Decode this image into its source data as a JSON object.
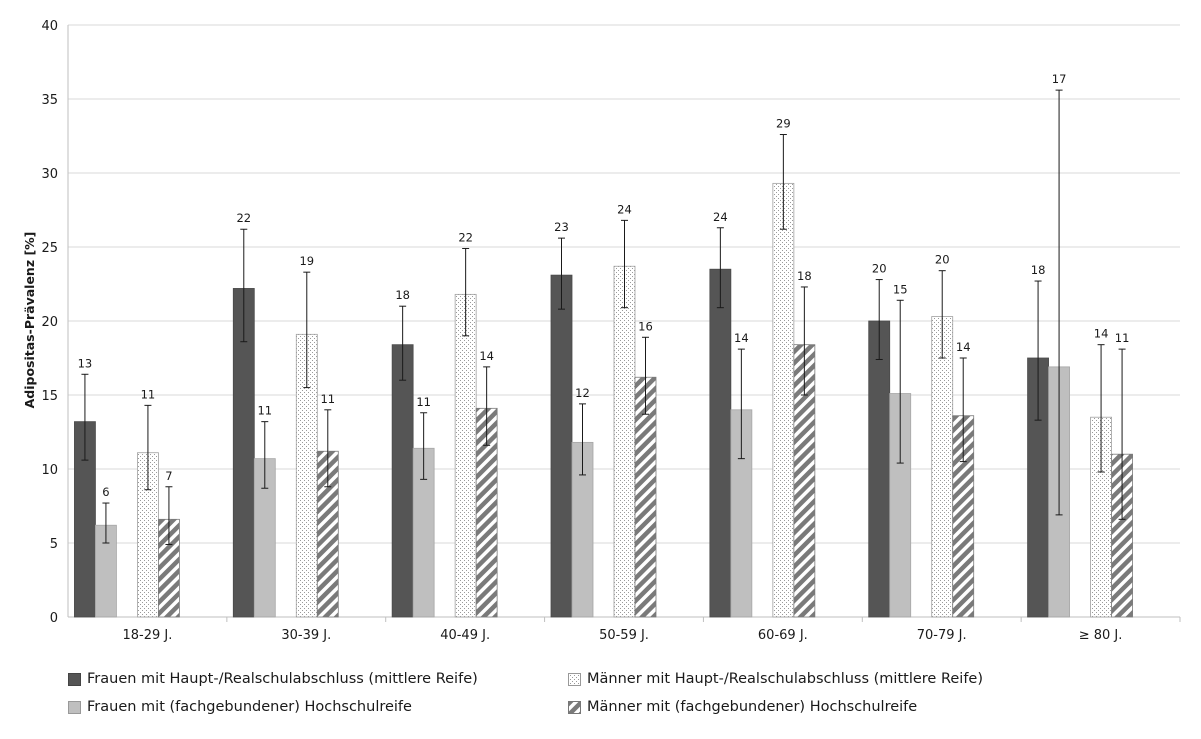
{
  "chart_data": {
    "type": "bar",
    "title": "",
    "xlabel": "",
    "ylabel": "Adipositas-Prävalenz [%]",
    "ylim": [
      0,
      40
    ],
    "yticks": [
      "0",
      "5",
      "10",
      "15",
      "20",
      "25",
      "30",
      "35",
      "40"
    ],
    "grid": true,
    "legend_position": "bottom",
    "categories": [
      "18-29 J.",
      "30-39 J.",
      "40-49 J.",
      "50-59 J.",
      "60-69 J.",
      "70-79 J.",
      "≥ 80 J."
    ],
    "series": [
      {
        "name": "Frauen mit Haupt-/Realschulabschluss (mittlere Reife)",
        "style": "solid-dark",
        "color": "#555555",
        "values": [
          13.2,
          22.2,
          18.4,
          23.1,
          23.5,
          20.0,
          17.5
        ],
        "labels": [
          "13",
          "22",
          "18",
          "23",
          "24",
          "20",
          "18"
        ],
        "ci_low": [
          10.6,
          18.6,
          16.0,
          20.8,
          20.9,
          17.4,
          13.3
        ],
        "ci_high": [
          16.4,
          26.2,
          21.0,
          25.6,
          26.3,
          22.8,
          22.7
        ]
      },
      {
        "name": "Frauen mit (fachgebundener) Hochschulreife",
        "style": "solid-light",
        "color": "#bfbfbf",
        "values": [
          6.2,
          10.7,
          11.4,
          11.8,
          14.0,
          15.1,
          16.9
        ],
        "labels": [
          "6",
          "11",
          "11",
          "12",
          "14",
          "15",
          "17"
        ],
        "ci_low": [
          5.0,
          8.7,
          9.3,
          9.6,
          10.7,
          10.4,
          6.9
        ],
        "ci_high": [
          7.7,
          13.2,
          13.8,
          14.4,
          18.1,
          21.4,
          35.6
        ]
      },
      {
        "name": "Männer mit Haupt-/Realschulabschluss (mittlere Reife)",
        "style": "dotted",
        "color": "#ffffff",
        "values": [
          11.1,
          19.1,
          21.8,
          23.7,
          29.3,
          20.3,
          13.5
        ],
        "labels": [
          "11",
          "19",
          "22",
          "24",
          "29",
          "20",
          "14"
        ],
        "ci_low": [
          8.6,
          15.5,
          19.0,
          20.9,
          26.2,
          17.5,
          9.8
        ],
        "ci_high": [
          14.3,
          23.3,
          24.9,
          26.8,
          32.6,
          23.4,
          18.4
        ]
      },
      {
        "name": "Männer mit (fachgebundener) Hochschulreife",
        "style": "hatched",
        "color": "#808080",
        "values": [
          6.6,
          11.2,
          14.1,
          16.2,
          18.4,
          13.6,
          11.0
        ],
        "labels": [
          "7",
          "11",
          "14",
          "16",
          "18",
          "14",
          "11"
        ],
        "ci_low": [
          4.9,
          8.8,
          11.6,
          13.7,
          15.0,
          10.5,
          6.6
        ],
        "ci_high": [
          8.8,
          14.0,
          16.9,
          18.9,
          22.3,
          17.5,
          18.1
        ]
      }
    ]
  }
}
